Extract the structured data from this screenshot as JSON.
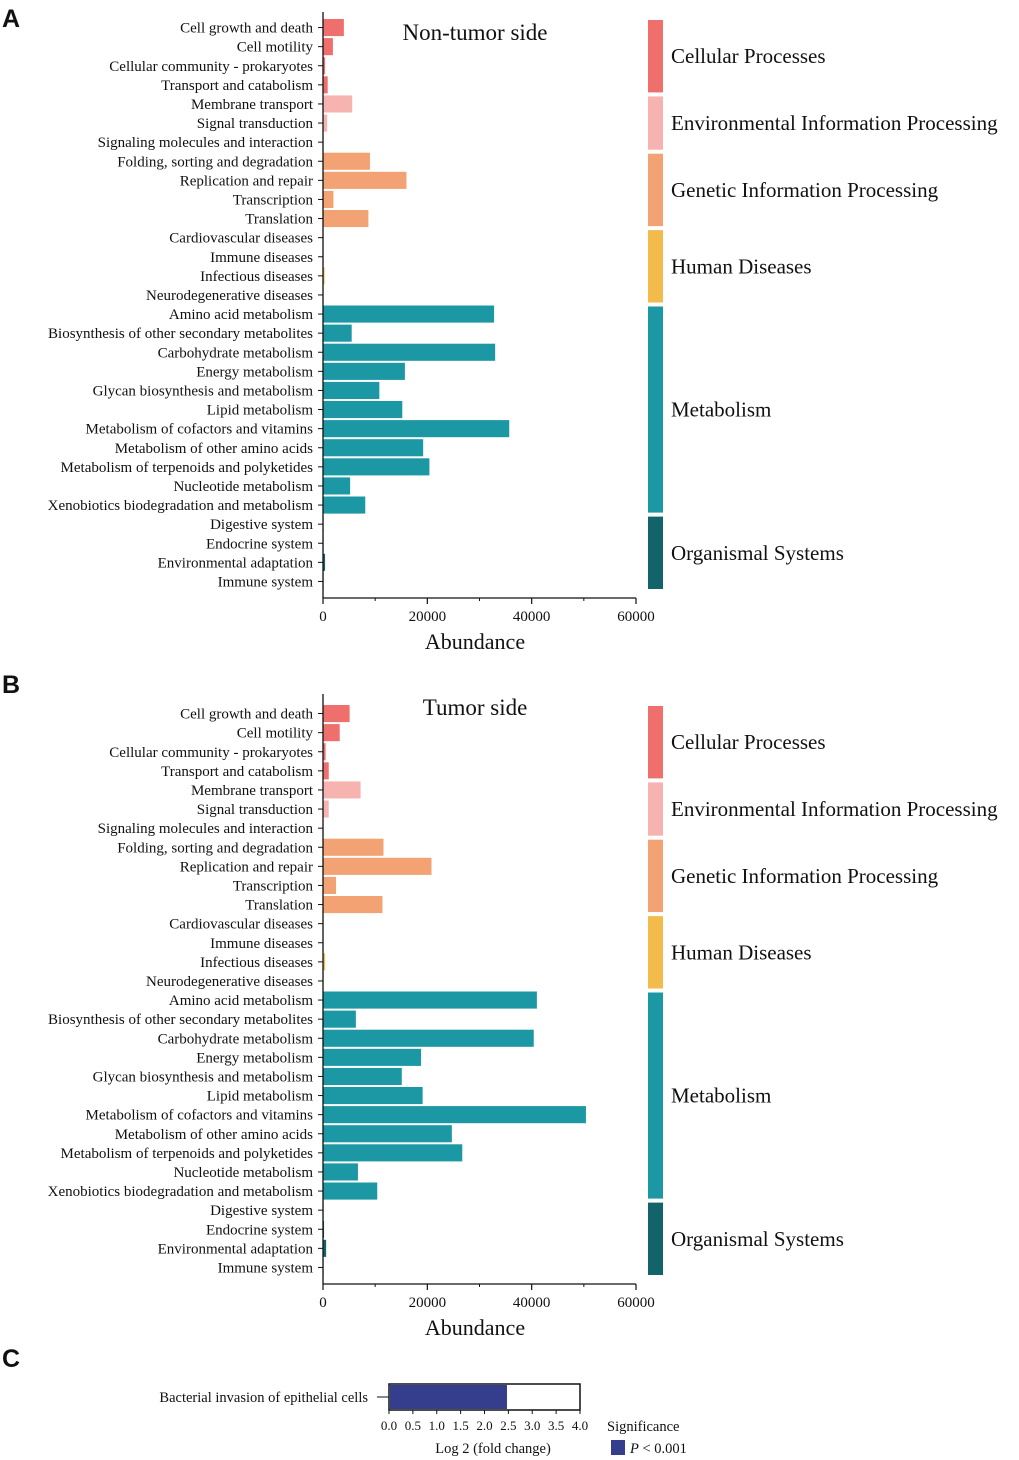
{
  "chart_data": [
    {
      "panel": "A",
      "type": "bar",
      "orientation": "horizontal",
      "title": "Non-tumor side",
      "xlabel": "Abundance",
      "xlim": [
        0,
        60000
      ],
      "xticks": [
        0,
        20000,
        40000,
        60000
      ],
      "categories": [
        "Cell growth and death",
        "Cell motility",
        "Cellular community - prokaryotes",
        "Transport and catabolism",
        "Membrane transport",
        "Signal transduction",
        "Signaling molecules and interaction",
        "Folding, sorting and degradation",
        "Replication and repair",
        "Transcription",
        "Translation",
        "Cardiovascular diseases",
        "Immune diseases",
        "Infectious diseases",
        "Neurodegenerative diseases",
        "Amino acid metabolism",
        "Biosynthesis of other secondary metabolites",
        "Carbohydrate metabolism",
        "Energy metabolism",
        "Glycan biosynthesis and metabolism",
        "Lipid metabolism",
        "Metabolism of cofactors and vitamins",
        "Metabolism of other amino acids",
        "Metabolism of terpenoids and polyketides",
        "Nucleotide metabolism",
        "Xenobiotics biodegradation and metabolism",
        "Digestive system",
        "Endocrine system",
        "Environmental adaptation",
        "Immune system"
      ],
      "values": [
        4000,
        1900,
        400,
        900,
        5600,
        800,
        50,
        9000,
        16000,
        2000,
        8700,
        50,
        50,
        300,
        100,
        32800,
        5500,
        33000,
        15700,
        10800,
        15200,
        35700,
        19200,
        20400,
        5200,
        8100,
        100,
        100,
        400,
        50
      ],
      "groups": [
        {
          "name": "Cellular Processes",
          "start": 0,
          "end": 3
        },
        {
          "name": "Environmental Information Processing",
          "start": 4,
          "end": 6
        },
        {
          "name": "Genetic Information Processing",
          "start": 7,
          "end": 10
        },
        {
          "name": "Human Diseases",
          "start": 11,
          "end": 14
        },
        {
          "name": "Metabolism",
          "start": 15,
          "end": 25
        },
        {
          "name": "Organismal Systems",
          "start": 26,
          "end": 29
        }
      ]
    },
    {
      "panel": "B",
      "type": "bar",
      "orientation": "horizontal",
      "title": "Tumor side",
      "xlabel": "Abundance",
      "xlim": [
        0,
        60000
      ],
      "xticks": [
        0,
        20000,
        40000,
        60000
      ],
      "categories": [
        "Cell growth and death",
        "Cell motility",
        "Cellular community - prokaryotes",
        "Transport and catabolism",
        "Membrane transport",
        "Signal transduction",
        "Signaling molecules and interaction",
        "Folding, sorting and degradation",
        "Replication and repair",
        "Transcription",
        "Translation",
        "Cardiovascular diseases",
        "Immune diseases",
        "Infectious diseases",
        "Neurodegenerative diseases",
        "Amino acid metabolism",
        "Biosynthesis of other secondary metabolites",
        "Carbohydrate metabolism",
        "Energy metabolism",
        "Glycan biosynthesis and metabolism",
        "Lipid metabolism",
        "Metabolism of cofactors and vitamins",
        "Metabolism of other amino acids",
        "Metabolism of terpenoids and polyketides",
        "Nucleotide metabolism",
        "Xenobiotics biodegradation and metabolism",
        "Digestive system",
        "Endocrine system",
        "Environmental adaptation",
        "Immune system"
      ],
      "values": [
        5100,
        3200,
        500,
        1100,
        7200,
        1100,
        50,
        11600,
        20800,
        2500,
        11400,
        50,
        50,
        400,
        100,
        41000,
        6300,
        40400,
        18800,
        15100,
        19100,
        50400,
        24700,
        26700,
        6700,
        10400,
        100,
        200,
        600,
        50
      ],
      "groups": [
        {
          "name": "Cellular Processes",
          "start": 0,
          "end": 3
        },
        {
          "name": "Environmental Information Processing",
          "start": 4,
          "end": 6
        },
        {
          "name": "Genetic Information Processing",
          "start": 7,
          "end": 10
        },
        {
          "name": "Human Diseases",
          "start": 11,
          "end": 14
        },
        {
          "name": "Metabolism",
          "start": 15,
          "end": 25
        },
        {
          "name": "Organismal Systems",
          "start": 26,
          "end": 29
        }
      ]
    },
    {
      "panel": "C",
      "type": "bar",
      "orientation": "horizontal",
      "categories": [
        "Bacterial invasion of epithelial cells"
      ],
      "values": [
        2.45
      ],
      "xlabel": "Log 2 (fold change)",
      "xlim": [
        0,
        4.0
      ],
      "xticks": [
        "0.0",
        "0.5",
        "1.0",
        "1.5",
        "2.0",
        "2.5",
        "3.0",
        "3.5",
        "4.0"
      ],
      "legend": {
        "title": "Significance",
        "entries": [
          {
            "label_prefix": "P",
            "label_suffix": " < 0.001"
          }
        ]
      }
    }
  ],
  "colors": {
    "Cellular Processes": "#ef6f6c",
    "Environmental Information Processing": "#f7b3b0",
    "Genetic Information Processing": "#f2a273",
    "Human Diseases": "#f3bb4c",
    "Metabolism": "#1b98a3",
    "Organismal Systems": "#13636b",
    "panel_c_bar": "#353e8d",
    "axis": "#111111"
  },
  "panel_labels": [
    "A",
    "B",
    "C"
  ]
}
